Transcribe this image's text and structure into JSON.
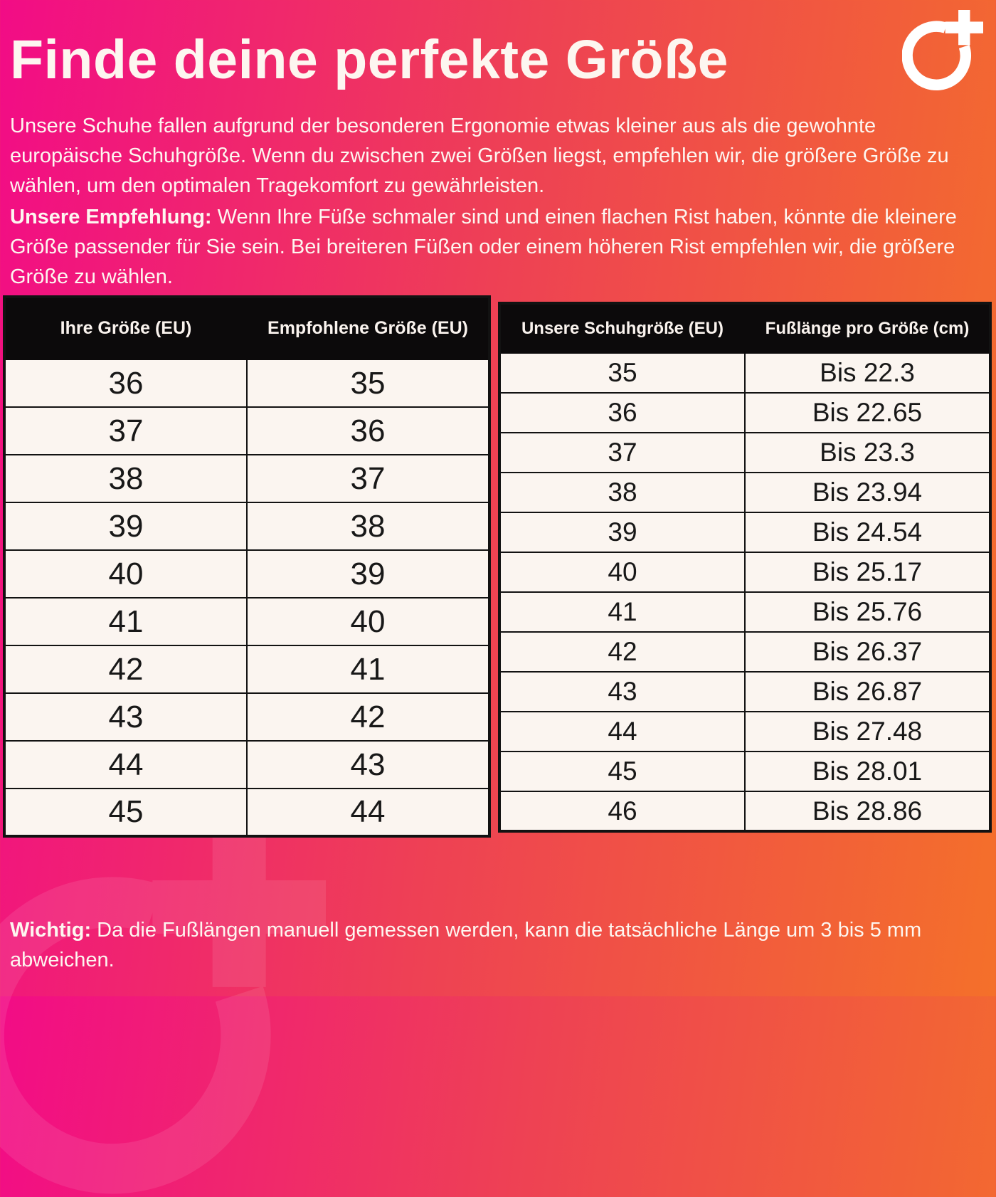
{
  "page": {
    "title": "Finde deine perfekte Größe",
    "intro": "Unsere Schuhe fallen aufgrund der besonderen Ergonomie etwas kleiner aus als die gewohnte europäische Schuhgröße. Wenn du zwischen zwei Größen liegst, empfehlen wir, die größere Größe zu wählen, um den optimalen Tragekomfort zu gewährleisten.",
    "recommendation_label": "Unsere Empfehlung:",
    "recommendation_text": " Wenn Ihre Füße schmaler sind und einen flachen Rist haben, könnte die kleinere Größe passender für Sie sein. Bei breiteren Füßen oder einem höheren Rist empfehlen wir, die größere Größe zu wählen.",
    "note_label": "Wichtig:",
    "note_text": " Da die Fußlängen manuell gemessen werden, kann die tatsächliche Länge um 3 bis 5 mm abweichen."
  },
  "logo": {
    "name": "circle-plus-brand-mark"
  },
  "size_table": {
    "headers": [
      "Ihre Größe (EU)",
      "Empfohlene Größe (EU)"
    ],
    "rows": [
      [
        "36",
        "35"
      ],
      [
        "37",
        "36"
      ],
      [
        "38",
        "37"
      ],
      [
        "39",
        "38"
      ],
      [
        "40",
        "39"
      ],
      [
        "41",
        "40"
      ],
      [
        "42",
        "41"
      ],
      [
        "43",
        "42"
      ],
      [
        "44",
        "43"
      ],
      [
        "45",
        "44"
      ]
    ]
  },
  "length_table": {
    "headers": [
      "Unsere Schuhgröße (EU)",
      "Fußlänge pro Größe (cm)"
    ],
    "rows": [
      [
        "35",
        "Bis 22.3"
      ],
      [
        "36",
        "Bis 22.65"
      ],
      [
        "37",
        "Bis 23.3"
      ],
      [
        "38",
        "Bis 23.94"
      ],
      [
        "39",
        "Bis 24.54"
      ],
      [
        "40",
        "Bis 25.17"
      ],
      [
        "41",
        "Bis 25.76"
      ],
      [
        "42",
        "Bis 26.37"
      ],
      [
        "43",
        "Bis 26.87"
      ],
      [
        "44",
        "Bis 27.48"
      ],
      [
        "45",
        "Bis 28.01"
      ],
      [
        "46",
        "Bis 28.86"
      ]
    ]
  },
  "colors": {
    "gradient_start": "#f20c86",
    "gradient_mid": "#ee4154",
    "gradient_end": "#f4702a",
    "table_header_bg": "#0c0a0b",
    "table_cell_bg": "#fbf5f0",
    "table_border": "#121212",
    "text_light": "#fdf6f0",
    "text_dark": "#181818"
  }
}
